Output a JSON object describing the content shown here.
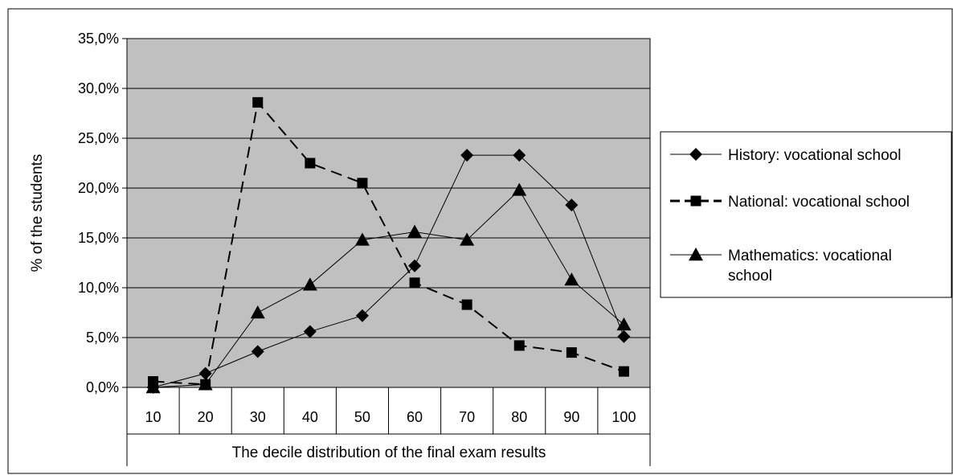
{
  "chart_data": {
    "type": "line",
    "title": "",
    "xlabel": "The decile distribution of the final exam results",
    "ylabel": "% of the students",
    "categories": [
      "10",
      "20",
      "30",
      "40",
      "50",
      "60",
      "70",
      "80",
      "90",
      "100"
    ],
    "ylim": [
      0,
      35
    ],
    "yticks": [
      "0,0%",
      "5,0%",
      "10,0%",
      "15,0%",
      "20,0%",
      "25,0%",
      "30,0%",
      "35,0%"
    ],
    "grid": true,
    "legend_position": "right",
    "plot_background": "#c0c0c0",
    "series": [
      {
        "name": "History: vocational school",
        "marker": "diamond",
        "line_style": "solid",
        "color": "#000000",
        "values": [
          0.0,
          1.4,
          3.6,
          5.6,
          7.2,
          12.2,
          23.3,
          23.3,
          18.3,
          5.1
        ]
      },
      {
        "name": "National: vocational school",
        "marker": "square",
        "line_style": "dashed",
        "color": "#000000",
        "values": [
          0.6,
          0.3,
          28.6,
          22.5,
          20.5,
          10.5,
          8.3,
          4.2,
          3.5,
          1.6
        ]
      },
      {
        "name": "Mathematics: vocational school",
        "marker": "triangle",
        "line_style": "solid",
        "color": "#000000",
        "values": [
          0.0,
          0.3,
          7.5,
          10.3,
          14.8,
          15.6,
          14.8,
          19.8,
          10.8,
          6.3
        ]
      }
    ]
  }
}
